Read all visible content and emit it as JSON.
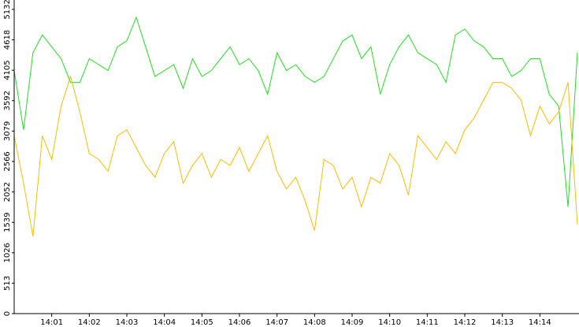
{
  "chart_data": {
    "type": "line",
    "categories": [
      null,
      null,
      null,
      null,
      "14:01",
      null,
      null,
      null,
      "14:02",
      null,
      null,
      null,
      "14:03",
      null,
      null,
      null,
      "14:04",
      null,
      null,
      null,
      "14:05",
      null,
      null,
      null,
      "14:06",
      null,
      null,
      null,
      "14:07",
      null,
      null,
      null,
      "14:08",
      null,
      null,
      null,
      "14:09",
      null,
      null,
      null,
      "14:10",
      null,
      null,
      null,
      "14:11",
      null,
      null,
      null,
      "14:12",
      null,
      null,
      null,
      "14:13",
      null,
      null,
      null,
      "14:14",
      null,
      null,
      null,
      null
    ],
    "series": [
      {
        "color": "#22dd22",
        "values": [
          4100,
          3100,
          4400,
          4700,
          4500,
          4300,
          3900,
          3900,
          4300,
          4200,
          4100,
          4500,
          4600,
          5000,
          4500,
          4000,
          4100,
          4200,
          3800,
          4300,
          4000,
          4100,
          4300,
          4500,
          4200,
          4300,
          4100,
          3700,
          4400,
          4100,
          4200,
          4000,
          3900,
          4000,
          4300,
          4600,
          4700,
          4300,
          4500,
          3700,
          4200,
          4500,
          4700,
          4400,
          4300,
          4200,
          3900,
          4700,
          4800,
          4600,
          4500,
          4300,
          4300,
          4000,
          4100,
          4300,
          4300,
          3700,
          3500,
          1800,
          4400
        ]
      },
      {
        "color": "#ffbb00",
        "values": [
          3000,
          2200,
          1300,
          3000,
          2600,
          3500,
          4000,
          3400,
          2700,
          2600,
          2400,
          3000,
          3100,
          2800,
          2500,
          2300,
          2700,
          2900,
          2200,
          2500,
          2700,
          2300,
          2600,
          2500,
          2800,
          2400,
          2700,
          3000,
          2400,
          2100,
          2300,
          1900,
          1400,
          2600,
          2500,
          2100,
          2300,
          1800,
          2300,
          2200,
          2700,
          2500,
          2000,
          3000,
          2800,
          2600,
          2900,
          2700,
          3100,
          3300,
          3600,
          3900,
          3900,
          3800,
          3600,
          3000,
          3500,
          3200,
          3400,
          3900,
          1500
        ]
      }
    ],
    "ylim": [
      0,
      5290
    ],
    "yticks": [
      0,
      513,
      1026,
      1539,
      2052,
      2566,
      3079,
      3592,
      4105,
      4618,
      5132
    ]
  }
}
